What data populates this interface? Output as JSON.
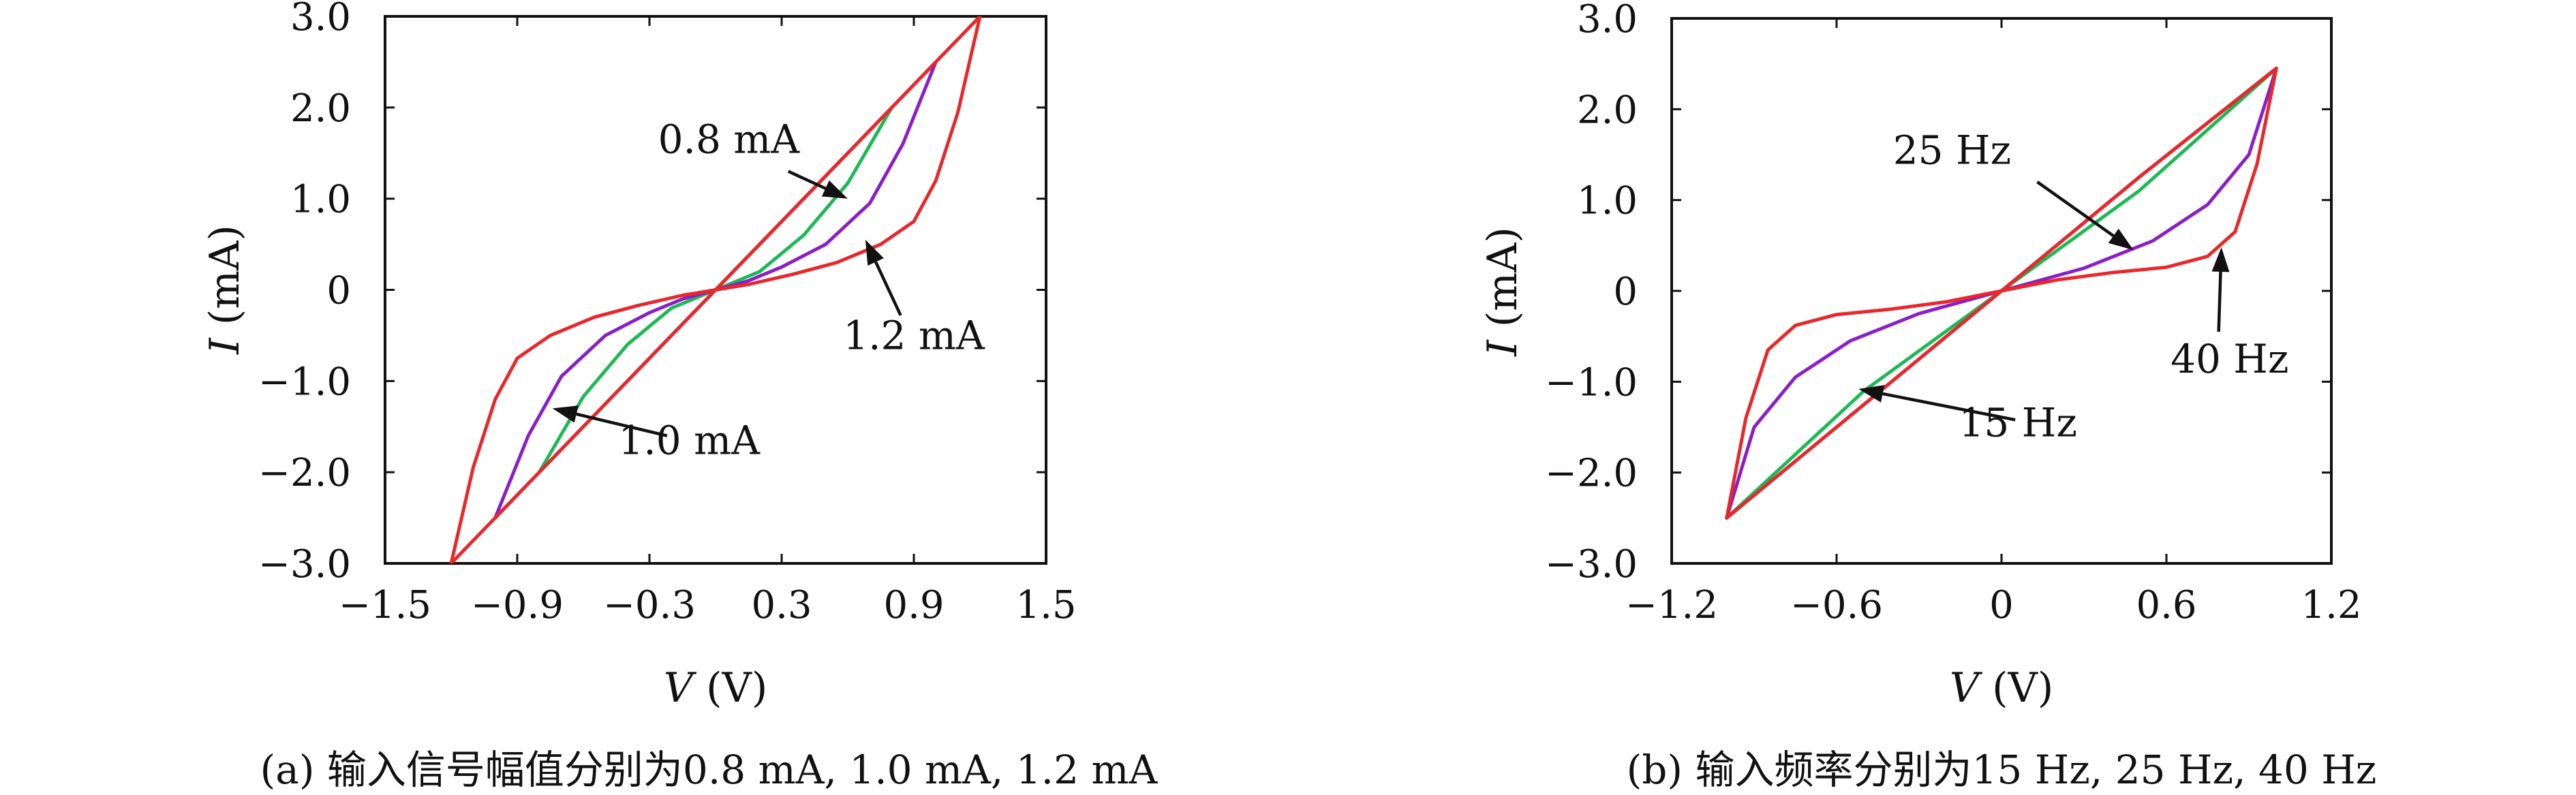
{
  "chart_data": [
    {
      "type": "line",
      "caption": "(a) 输入信号幅值分别为0.8 mA, 1.0 mA, 1.2 mA",
      "xlabel_var": "V",
      "xlabel_unit": " (V)",
      "ylabel_var": "I",
      "ylabel_unit": " (mA)",
      "xlim": [
        -1.5,
        1.5
      ],
      "ylim": [
        -3.0,
        3.0
      ],
      "x_ticks": [
        -1.5,
        -0.9,
        -0.3,
        0.3,
        0.9,
        1.5
      ],
      "x_tick_labels": [
        "−1.5",
        "−0.9",
        "−0.3",
        "0.3",
        "0.9",
        "1.5"
      ],
      "y_ticks": [
        -3.0,
        -2.0,
        -1.0,
        0,
        1.0,
        2.0,
        3.0
      ],
      "y_tick_labels": [
        "−3.0",
        "−2.0",
        "−1.0",
        "0",
        "1.0",
        "2.0",
        "3.0"
      ],
      "grid": false,
      "series": [
        {
          "color": "#1db954",
          "points": [
            [
              -0.8,
              -2.0
            ],
            [
              -0.6,
              -1.17
            ],
            [
              -0.4,
              -0.6
            ],
            [
              -0.2,
              -0.2
            ],
            [
              0.0,
              0.0
            ],
            [
              0.2,
              0.2
            ],
            [
              0.4,
              0.6
            ],
            [
              0.6,
              1.17
            ],
            [
              0.8,
              2.0
            ],
            [
              0.6,
              1.5
            ],
            [
              0.4,
              1.0
            ],
            [
              0.2,
              0.5
            ],
            [
              0.0,
              0.0
            ],
            [
              -0.2,
              -0.5
            ],
            [
              -0.4,
              -1.0
            ],
            [
              -0.6,
              -1.5
            ],
            [
              -0.8,
              -2.0
            ]
          ]
        },
        {
          "color": "#8b1fc7",
          "points": [
            [
              -1.0,
              -2.5
            ],
            [
              -0.85,
              -1.6
            ],
            [
              -0.7,
              -0.95
            ],
            [
              -0.5,
              -0.5
            ],
            [
              -0.3,
              -0.25
            ],
            [
              -0.15,
              -0.1
            ],
            [
              0.0,
              0.0
            ],
            [
              0.15,
              0.1
            ],
            [
              0.3,
              0.25
            ],
            [
              0.5,
              0.5
            ],
            [
              0.7,
              0.95
            ],
            [
              0.85,
              1.6
            ],
            [
              1.0,
              2.5
            ],
            [
              0.5,
              1.25
            ],
            [
              0.0,
              0.0
            ],
            [
              -0.5,
              -1.25
            ],
            [
              -1.0,
              -2.5
            ]
          ]
        },
        {
          "color": "#e8282b",
          "points": [
            [
              -1.2,
              -3.0
            ],
            [
              -1.1,
              -1.95
            ],
            [
              -1.0,
              -1.2
            ],
            [
              -0.9,
              -0.75
            ],
            [
              -0.75,
              -0.5
            ],
            [
              -0.55,
              -0.3
            ],
            [
              -0.35,
              -0.17
            ],
            [
              -0.15,
              -0.06
            ],
            [
              0.0,
              0.0
            ],
            [
              0.15,
              0.06
            ],
            [
              0.35,
              0.17
            ],
            [
              0.55,
              0.3
            ],
            [
              0.75,
              0.5
            ],
            [
              0.9,
              0.75
            ],
            [
              1.0,
              1.2
            ],
            [
              1.1,
              1.95
            ],
            [
              1.2,
              3.0
            ],
            [
              0.6,
              1.5
            ],
            [
              0.0,
              0.0
            ],
            [
              -0.6,
              -1.5
            ],
            [
              -1.2,
              -3.0
            ]
          ]
        }
      ],
      "annotations": [
        {
          "text": "0.8 mA",
          "text_at": [
            0.06,
            1.65
          ],
          "arrow_from": [
            0.33,
            1.3
          ],
          "arrow_to": [
            0.6,
            1.0
          ]
        },
        {
          "text": "1.2 mA",
          "text_at": [
            0.9,
            -0.5
          ],
          "arrow_from": [
            0.84,
            -0.28
          ],
          "arrow_to": [
            0.68,
            0.55
          ]
        },
        {
          "text": "1.0 mA",
          "text_at": [
            -0.12,
            -1.65
          ],
          "arrow_from": [
            -0.22,
            -1.6
          ],
          "arrow_to": [
            -0.74,
            -1.3
          ]
        }
      ]
    },
    {
      "type": "line",
      "caption": "(b) 输入频率分别为15 Hz, 25 Hz, 40 Hz",
      "xlabel_var": "V",
      "xlabel_unit": " (V)",
      "ylabel_var": "I",
      "ylabel_unit": " (mA)",
      "xlim": [
        -1.2,
        1.2
      ],
      "ylim": [
        -3.0,
        3.0
      ],
      "x_ticks": [
        -1.2,
        -0.6,
        0,
        0.6,
        1.2
      ],
      "x_tick_labels": [
        "−1.2",
        "−0.6",
        "0",
        "0.6",
        "1.2"
      ],
      "y_ticks": [
        -3.0,
        -2.0,
        -1.0,
        0,
        1.0,
        2.0,
        3.0
      ],
      "y_tick_labels": [
        "−3.0",
        "−2.0",
        "−1.0",
        "0",
        "1.0",
        "2.0",
        "3.0"
      ],
      "grid": false,
      "series": [
        {
          "color": "#1db954",
          "points": [
            [
              -1.0,
              -2.5
            ],
            [
              -0.5,
              -1.25
            ],
            [
              0.0,
              0.0
            ],
            [
              0.5,
              1.25
            ],
            [
              1.0,
              2.45
            ],
            [
              0.5,
              1.1
            ],
            [
              0.0,
              0.0
            ],
            [
              -0.5,
              -1.1
            ],
            [
              -1.0,
              -2.5
            ]
          ]
        },
        {
          "color": "#8b1fc7",
          "points": [
            [
              -1.0,
              -2.5
            ],
            [
              -0.9,
              -1.5
            ],
            [
              -0.75,
              -0.95
            ],
            [
              -0.55,
              -0.55
            ],
            [
              -0.3,
              -0.25
            ],
            [
              0.0,
              0.0
            ],
            [
              0.3,
              0.25
            ],
            [
              0.55,
              0.55
            ],
            [
              0.75,
              0.95
            ],
            [
              0.9,
              1.5
            ],
            [
              1.0,
              2.45
            ],
            [
              0.5,
              1.25
            ],
            [
              0.0,
              0.0
            ],
            [
              -0.5,
              -1.25
            ],
            [
              -1.0,
              -2.5
            ]
          ]
        },
        {
          "color": "#e8282b",
          "points": [
            [
              -1.0,
              -2.5
            ],
            [
              -0.93,
              -1.4
            ],
            [
              -0.85,
              -0.65
            ],
            [
              -0.75,
              -0.38
            ],
            [
              -0.6,
              -0.26
            ],
            [
              -0.4,
              -0.2
            ],
            [
              -0.2,
              -0.12
            ],
            [
              0.0,
              0.0
            ],
            [
              0.2,
              0.12
            ],
            [
              0.4,
              0.2
            ],
            [
              0.6,
              0.26
            ],
            [
              0.75,
              0.38
            ],
            [
              0.85,
              0.65
            ],
            [
              0.93,
              1.4
            ],
            [
              1.0,
              2.45
            ],
            [
              0.5,
              1.25
            ],
            [
              0.0,
              0.0
            ],
            [
              -0.5,
              -1.25
            ],
            [
              -1.0,
              -2.5
            ]
          ]
        }
      ],
      "annotations": [
        {
          "text": "25 Hz",
          "text_at": [
            -0.18,
            1.55
          ],
          "arrow_from": [
            0.13,
            1.2
          ],
          "arrow_to": [
            0.48,
            0.45
          ]
        },
        {
          "text": "40 Hz",
          "text_at": [
            0.83,
            -0.75
          ],
          "arrow_from": [
            0.79,
            -0.45
          ],
          "arrow_to": [
            0.8,
            0.48
          ]
        },
        {
          "text": "15 Hz",
          "text_at": [
            0.06,
            -1.45
          ],
          "arrow_from": [
            0.05,
            -1.42
          ],
          "arrow_to": [
            -0.52,
            -1.08
          ]
        }
      ]
    }
  ]
}
